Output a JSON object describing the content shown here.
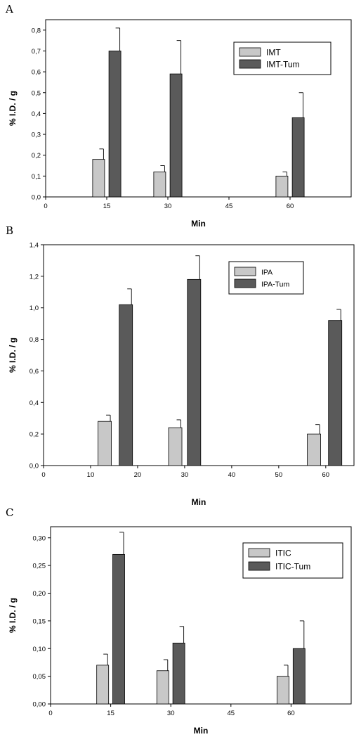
{
  "colors": {
    "light": "#c8c8c8",
    "dark": "#5a5a5a",
    "axis": "#000000"
  },
  "chart_data": [
    {
      "panel": "A",
      "type": "bar",
      "xlabel": "Min",
      "ylabel": "% I.D. / g",
      "xlim": [
        0,
        75
      ],
      "ylim": [
        0,
        0.85
      ],
      "x_ticks": [
        0,
        15,
        30,
        45,
        60
      ],
      "x_tick_labels": [
        "0",
        "15",
        "30",
        "45",
        "60"
      ],
      "y_ticks": [
        0,
        0.1,
        0.2,
        0.3,
        0.4,
        0.5,
        0.6,
        0.7,
        0.8
      ],
      "y_tick_labels": [
        "0,0",
        "0,1",
        "0,2",
        "0,3",
        "0,4",
        "0,5",
        "0,6",
        "0,7",
        "0,8"
      ],
      "legend_position": "top-right",
      "series": [
        {
          "name": "IMT",
          "color": "light",
          "x": [
            13,
            28,
            58
          ],
          "values": [
            0.18,
            0.12,
            0.1
          ],
          "errors": [
            0.05,
            0.03,
            0.02
          ]
        },
        {
          "name": "IMT-Tum",
          "color": "dark",
          "x": [
            17,
            32,
            62
          ],
          "values": [
            0.7,
            0.59,
            0.38
          ],
          "errors": [
            0.11,
            0.16,
            0.12
          ]
        }
      ]
    },
    {
      "panel": "B",
      "type": "bar",
      "xlabel": "Min",
      "ylabel": "% I.D. / g",
      "xlim": [
        0,
        66
      ],
      "ylim": [
        0,
        1.4
      ],
      "x_ticks": [
        0,
        10,
        20,
        30,
        40,
        50,
        60
      ],
      "x_tick_labels": [
        "0",
        "10",
        "20",
        "30",
        "40",
        "50",
        "60"
      ],
      "y_ticks": [
        0,
        0.2,
        0.4,
        0.6,
        0.8,
        1.0,
        1.2,
        1.4
      ],
      "y_tick_labels": [
        "0,0",
        "0,2",
        "0,4",
        "0,6",
        "0,8",
        "1,0",
        "1,2",
        "1,4"
      ],
      "legend_position": "top-right",
      "series": [
        {
          "name": "IPA",
          "color": "light",
          "x": [
            13,
            28,
            57.5
          ],
          "values": [
            0.28,
            0.24,
            0.2
          ],
          "errors": [
            0.04,
            0.05,
            0.06
          ]
        },
        {
          "name": "IPA-Tum",
          "color": "dark",
          "x": [
            17.5,
            32,
            62
          ],
          "values": [
            1.02,
            1.18,
            0.92
          ],
          "errors": [
            0.1,
            0.15,
            0.07
          ]
        }
      ]
    },
    {
      "panel": "C",
      "type": "bar",
      "xlabel": "Min",
      "ylabel": "% I.D. / g",
      "xlim": [
        0,
        75
      ],
      "ylim": [
        0,
        0.32
      ],
      "x_ticks": [
        0,
        15,
        30,
        45,
        60
      ],
      "x_tick_labels": [
        "0",
        "15",
        "30",
        "45",
        "60"
      ],
      "y_ticks": [
        0,
        0.05,
        0.1,
        0.15,
        0.2,
        0.25,
        0.3
      ],
      "y_tick_labels": [
        "0,00",
        "0,05",
        "0,10",
        "0,15",
        "0,20",
        "0,25",
        "0,30"
      ],
      "legend_position": "top-right",
      "series": [
        {
          "name": "ITIC",
          "color": "light",
          "x": [
            13,
            28,
            58
          ],
          "values": [
            0.07,
            0.06,
            0.05
          ],
          "errors": [
            0.02,
            0.02,
            0.02
          ]
        },
        {
          "name": "ITIC-Tum",
          "color": "dark",
          "x": [
            17,
            32,
            62
          ],
          "values": [
            0.27,
            0.11,
            0.1
          ],
          "errors": [
            0.04,
            0.03,
            0.05
          ]
        }
      ]
    }
  ]
}
